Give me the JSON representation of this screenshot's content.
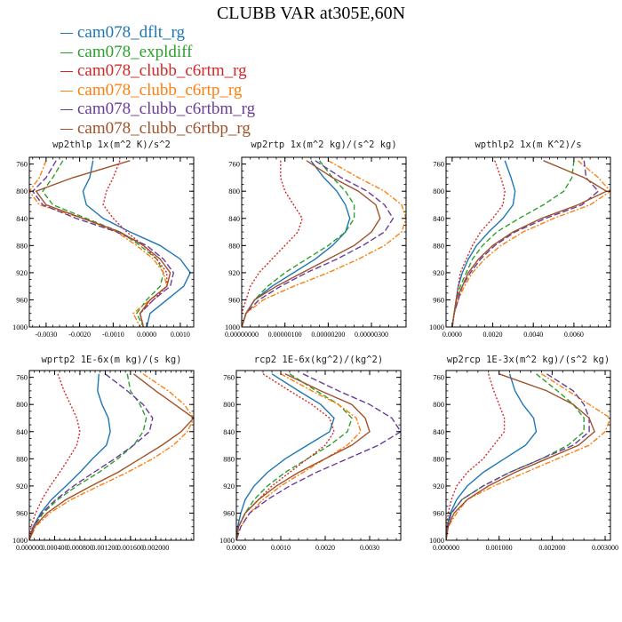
{
  "title": "CLUBB VAR at305E,60N",
  "legend": [
    {
      "name": "cam078_dflt_rg",
      "color": "#1f77b4",
      "dash": ""
    },
    {
      "name": "cam078_expldiff",
      "color": "#2ca02c",
      "dash": "6,3"
    },
    {
      "name": "cam078_clubb_c6rtm_rg",
      "color": "#d62728",
      "dash": "2,2"
    },
    {
      "name": "cam078_clubb_c6rtp_rg",
      "color": "#ff7f0e",
      "dash": "6,2,2,2"
    },
    {
      "name": "cam078_clubb_c6rtbm_rg",
      "color": "#6a3d9a",
      "dash": "7,3"
    },
    {
      "name": "cam078_clubb_c6rtbp_rg",
      "color": "#a0522d",
      "dash": ""
    }
  ],
  "chart_data": [
    {
      "type": "line",
      "title": "wp2thlp   1x(m^2 K)/s^2",
      "xlim": [
        -0.0035,
        0.0014
      ],
      "ylim": [
        1000,
        750
      ],
      "xticks": [
        -0.003,
        -0.002,
        -0.001,
        0.0,
        0.001
      ],
      "xtick_labels": [
        "-0.0030",
        "-0.0020",
        "-0.0010",
        "0.0000",
        "0.0010"
      ],
      "yticks": [
        760,
        800,
        840,
        880,
        920,
        960,
        1000
      ],
      "y": [
        755,
        780,
        800,
        820,
        840,
        860,
        880,
        900,
        920,
        940,
        960,
        980,
        1000
      ],
      "series": [
        {
          "name": "cam078_dflt_rg",
          "values": [
            -0.0016,
            -0.0017,
            -0.0019,
            -0.0018,
            -0.0013,
            -0.0005,
            0.0004,
            0.001,
            0.0013,
            0.0011,
            0.0006,
            0.0001,
            0.0
          ]
        },
        {
          "name": "cam078_expldiff",
          "values": [
            -0.0025,
            -0.0028,
            -0.0031,
            -0.0028,
            -0.0018,
            -0.0008,
            -0.0002,
            0.0003,
            0.0005,
            0.0004,
            0.0,
            -0.0003,
            -0.0001
          ]
        },
        {
          "name": "cam078_clubb_c6rtm_rg",
          "values": [
            -0.0008,
            -0.001,
            -0.0012,
            -0.0013,
            -0.001,
            -0.0006,
            -0.0001,
            0.0003,
            0.0006,
            0.0006,
            0.0002,
            -0.0002,
            -0.0001
          ]
        },
        {
          "name": "cam078_clubb_c6rtp_rg",
          "values": [
            -0.003,
            -0.0032,
            -0.0035,
            -0.0032,
            -0.0019,
            -0.0009,
            -0.0003,
            0.0002,
            0.0005,
            0.0006,
            0.0001,
            -0.0004,
            -0.0002
          ]
        },
        {
          "name": "cam078_clubb_c6rtbm_rg",
          "values": [
            -0.0027,
            -0.003,
            -0.0034,
            -0.0031,
            -0.0021,
            -0.0009,
            0.0,
            0.0005,
            0.0008,
            0.0007,
            0.0002,
            -0.0002,
            -0.0001
          ]
        },
        {
          "name": "cam078_clubb_c6rtbp_rg",
          "values": [
            -0.0005,
            -0.0022,
            -0.0033,
            -0.003,
            -0.0019,
            -0.0008,
            -0.0001,
            0.0004,
            0.0007,
            0.0006,
            0.0001,
            -0.0002,
            -0.0001
          ]
        }
      ]
    },
    {
      "type": "line",
      "title": "wp2rtp   1x(m^2 kg)/(s^2 kg)",
      "xlim": [
        0.0,
        3.8e-06
      ],
      "ylim": [
        1000,
        750
      ],
      "xticks": [
        0.0,
        1e-06,
        2e-06,
        3e-06
      ],
      "xtick_labels": [
        "0.00000000",
        "0.00000100",
        "0.00000200",
        "0.00000300"
      ],
      "yticks": [
        760,
        800,
        840,
        880,
        920,
        960,
        1000
      ],
      "y": [
        755,
        780,
        800,
        820,
        840,
        860,
        880,
        900,
        920,
        940,
        960,
        980,
        1000
      ],
      "series": [
        {
          "name": "cam078_dflt_rg",
          "values": [
            1.6e-06,
            1.9e-06,
            2.2e-06,
            2.4e-06,
            2.5e-06,
            2.4e-06,
            2.1e-06,
            1.7e-06,
            1.2e-06,
            7e-07,
            3e-07,
            1e-07,
            0.0
          ]
        },
        {
          "name": "cam078_expldiff",
          "values": [
            1.8e-06,
            2.1e-06,
            2.4e-06,
            2.6e-06,
            2.6e-06,
            2.4e-06,
            2e-06,
            1.5e-06,
            1e-06,
            6e-07,
            3e-07,
            1e-07,
            0.0
          ]
        },
        {
          "name": "cam078_clubb_c6rtm_rg",
          "values": [
            9e-07,
            9e-07,
            1e-06,
            1.2e-06,
            1.4e-06,
            1.3e-06,
            1e-06,
            7e-07,
            4e-07,
            2e-07,
            1e-07,
            0.0,
            0.0
          ]
        },
        {
          "name": "cam078_clubb_c6rtp_rg",
          "values": [
            2e-06,
            2.7e-06,
            3.3e-06,
            3.7e-06,
            3.8e-06,
            3.7e-06,
            3.3e-06,
            2.7e-06,
            2e-06,
            1.2e-06,
            5e-07,
            1e-07,
            0.0
          ]
        },
        {
          "name": "cam078_clubb_c6rtbm_rg",
          "values": [
            1.7e-06,
            2.3e-06,
            2.9e-06,
            3.3e-06,
            3.5e-06,
            3.3e-06,
            2.8e-06,
            2.2e-06,
            1.5e-06,
            9e-07,
            4e-07,
            1e-07,
            0.0
          ]
        },
        {
          "name": "cam078_clubb_c6rtbp_rg",
          "values": [
            1.5e-06,
            2.1e-06,
            2.7e-06,
            3.1e-06,
            3.2e-06,
            3e-06,
            2.6e-06,
            2e-06,
            1.4e-06,
            8e-07,
            3e-07,
            1e-07,
            0.0
          ]
        }
      ]
    },
    {
      "type": "line",
      "title": "wpthlp2   1x(m K^2)/s",
      "xlim": [
        -0.0003,
        0.0078
      ],
      "ylim": [
        1000,
        750
      ],
      "xticks": [
        0.0,
        0.002,
        0.004,
        0.006
      ],
      "xtick_labels": [
        "0.0000",
        "0.0020",
        "0.0040",
        "0.0060"
      ],
      "yticks": [
        760,
        800,
        840,
        880,
        920,
        960,
        1000
      ],
      "y": [
        755,
        780,
        800,
        820,
        840,
        860,
        880,
        900,
        920,
        940,
        960,
        980,
        1000
      ],
      "series": [
        {
          "name": "cam078_dflt_rg",
          "values": [
            0.0026,
            0.0029,
            0.0031,
            0.003,
            0.0025,
            0.0018,
            0.0012,
            0.0008,
            0.0005,
            0.0003,
            0.0002,
            0.0001,
            0.0
          ]
        },
        {
          "name": "cam078_expldiff",
          "values": [
            0.006,
            0.0059,
            0.0055,
            0.0045,
            0.0033,
            0.0022,
            0.0015,
            0.001,
            0.0007,
            0.0004,
            0.0002,
            0.0001,
            0.0
          ]
        },
        {
          "name": "cam078_clubb_c6rtm_rg",
          "values": [
            0.0021,
            0.0024,
            0.0026,
            0.0025,
            0.002,
            0.0014,
            0.001,
            0.0007,
            0.0004,
            0.0003,
            0.0002,
            0.0001,
            0.0
          ]
        },
        {
          "name": "cam078_clubb_c6rtp_rg",
          "values": [
            0.0062,
            0.0072,
            0.0078,
            0.0068,
            0.005,
            0.0035,
            0.0024,
            0.0016,
            0.001,
            0.0006,
            0.0003,
            0.0001,
            0.0
          ]
        },
        {
          "name": "cam078_clubb_c6rtbm_rg",
          "values": [
            0.0065,
            0.0066,
            0.0072,
            0.0064,
            0.0046,
            0.0031,
            0.0021,
            0.0014,
            0.0009,
            0.0005,
            0.0003,
            0.0001,
            0.0
          ]
        },
        {
          "name": "cam078_clubb_c6rtbp_rg",
          "values": [
            0.0045,
            0.0065,
            0.0076,
            0.0062,
            0.0044,
            0.003,
            0.002,
            0.0013,
            0.0008,
            0.0005,
            0.0002,
            0.0001,
            0.0
          ]
        }
      ]
    },
    {
      "type": "line",
      "title": "wprtp2   1E-6x(m kg)/(s kg)",
      "xlim": [
        0.0,
        0.0026
      ],
      "ylim": [
        1000,
        750
      ],
      "xticks": [
        0.0,
        0.0004,
        0.0008,
        0.0012,
        0.0016,
        0.002
      ],
      "xtick_labels": [
        "0.000000",
        "0.000400",
        "0.000800",
        "0.001200",
        "0.001600",
        "0.002000"
      ],
      "yticks": [
        760,
        800,
        840,
        880,
        920,
        960,
        1000
      ],
      "y": [
        755,
        780,
        800,
        820,
        840,
        860,
        880,
        900,
        920,
        940,
        960,
        980,
        1000
      ],
      "series": [
        {
          "name": "cam078_dflt_rg",
          "values": [
            0.0011,
            0.00108,
            0.00115,
            0.00125,
            0.00128,
            0.00122,
            0.001,
            0.0008,
            0.00058,
            0.00035,
            0.00018,
            6e-05,
            0.0
          ]
        },
        {
          "name": "cam078_expldiff",
          "values": [
            0.00155,
            0.0016,
            0.00175,
            0.00185,
            0.0018,
            0.00165,
            0.0014,
            0.0011,
            0.00075,
            0.00045,
            0.00022,
            7e-05,
            0.0
          ]
        },
        {
          "name": "cam078_clubb_c6rtm_rg",
          "values": [
            0.00045,
            0.00055,
            0.00065,
            0.00075,
            0.0008,
            0.00075,
            0.00062,
            0.00048,
            0.00033,
            0.0002,
            0.0001,
            3e-05,
            0.0
          ]
        },
        {
          "name": "cam078_clubb_c6rtp_rg",
          "values": [
            0.0018,
            0.0022,
            0.00245,
            0.0026,
            0.0025,
            0.00228,
            0.00195,
            0.00155,
            0.0011,
            0.00066,
            0.00032,
            0.0001,
            0.0
          ]
        },
        {
          "name": "cam078_clubb_c6rtbm_rg",
          "values": [
            0.0012,
            0.00155,
            0.0018,
            0.00195,
            0.0019,
            0.00165,
            0.00135,
            0.00102,
            0.0007,
            0.00042,
            0.0002,
            6e-05,
            0.0
          ]
        },
        {
          "name": "cam078_clubb_c6rtbp_rg",
          "values": [
            0.00165,
            0.002,
            0.0023,
            0.0026,
            0.0024,
            0.0021,
            0.00175,
            0.0014,
            0.00098,
            0.00058,
            0.00028,
            8e-05,
            0.0
          ]
        }
      ]
    },
    {
      "type": "line",
      "title": "rcp2   1E-6x(kg^2)/(kg^2)",
      "xlim": [
        0.0,
        0.0037
      ],
      "ylim": [
        1000,
        750
      ],
      "xticks": [
        0.0,
        0.001,
        0.002,
        0.003
      ],
      "xtick_labels": [
        "0.0000",
        "0.0010",
        "0.0020",
        "0.0030"
      ],
      "yticks": [
        760,
        800,
        840,
        880,
        920,
        960,
        1000
      ],
      "y": [
        755,
        780,
        800,
        820,
        840,
        860,
        880,
        900,
        920,
        940,
        960,
        980,
        1000
      ],
      "series": [
        {
          "name": "cam078_dflt_rg",
          "values": [
            0.0008,
            0.0014,
            0.0019,
            0.0022,
            0.0021,
            0.0016,
            0.0011,
            0.0007,
            0.0004,
            0.0002,
            0.0001,
            3e-05,
            0.0
          ]
        },
        {
          "name": "cam078_expldiff",
          "values": [
            0.0012,
            0.0018,
            0.0023,
            0.0026,
            0.0025,
            0.0021,
            0.0016,
            0.0011,
            0.0007,
            0.0004,
            0.0002,
            5e-05,
            0.0
          ]
        },
        {
          "name": "cam078_clubb_c6rtm_rg",
          "values": [
            0.0006,
            0.0012,
            0.0017,
            0.0021,
            0.0022,
            0.002,
            0.0016,
            0.0012,
            0.0008,
            0.0005,
            0.0002,
            5e-05,
            0.0
          ]
        },
        {
          "name": "cam078_clubb_c6rtp_rg",
          "values": [
            0.001,
            0.0017,
            0.0023,
            0.0027,
            0.0028,
            0.0025,
            0.002,
            0.0015,
            0.001,
            0.0006,
            0.0003,
            0.0001,
            0.0
          ]
        },
        {
          "name": "cam078_clubb_c6rtbm_rg",
          "values": [
            0.0015,
            0.0023,
            0.003,
            0.0035,
            0.0037,
            0.0032,
            0.0025,
            0.0018,
            0.0012,
            0.0007,
            0.0003,
            0.0001,
            0.0
          ]
        },
        {
          "name": "cam078_clubb_c6rtbp_rg",
          "values": [
            0.0011,
            0.0019,
            0.0026,
            0.0029,
            0.003,
            0.0026,
            0.002,
            0.0014,
            0.0009,
            0.0005,
            0.0002,
            5e-05,
            0.0
          ]
        }
      ]
    },
    {
      "type": "line",
      "title": "wp2rcp   1E-3x(m^2 kg)/(s^2 kg)",
      "xlim": [
        0.0,
        0.0031
      ],
      "ylim": [
        1000,
        750
      ],
      "xticks": [
        0.0,
        0.001,
        0.002,
        0.003
      ],
      "xtick_labels": [
        "0.000000",
        "0.001000",
        "0.002000",
        "0.003000"
      ],
      "yticks": [
        760,
        800,
        840,
        880,
        920,
        960,
        1000
      ],
      "y": [
        755,
        780,
        800,
        820,
        840,
        860,
        880,
        900,
        920,
        940,
        960,
        980,
        1000
      ],
      "series": [
        {
          "name": "cam078_dflt_rg",
          "values": [
            0.0012,
            0.0013,
            0.00145,
            0.00165,
            0.0017,
            0.0015,
            0.0011,
            0.0007,
            0.0004,
            0.0002,
            8e-05,
            2e-05,
            0.0
          ]
        },
        {
          "name": "cam078_expldiff",
          "values": [
            0.0017,
            0.0021,
            0.0024,
            0.0026,
            0.0026,
            0.0023,
            0.0018,
            0.0012,
            0.0007,
            0.0003,
            0.0001,
            3e-05,
            0.0
          ]
        },
        {
          "name": "cam078_clubb_c6rtm_rg",
          "values": [
            0.0008,
            0.0009,
            0.001,
            0.0011,
            0.0011,
            0.0009,
            0.0007,
            0.0004,
            0.0002,
            0.0001,
            4e-05,
            1e-05,
            0.0
          ]
        },
        {
          "name": "cam078_clubb_c6rtp_rg",
          "values": [
            0.0018,
            0.0023,
            0.0027,
            0.0031,
            0.003,
            0.0027,
            0.0021,
            0.0015,
            0.0009,
            0.0004,
            0.0002,
            4e-05,
            0.0
          ]
        },
        {
          "name": "cam078_clubb_c6rtbm_rg",
          "values": [
            0.0019,
            0.0024,
            0.0026,
            0.0027,
            0.0027,
            0.0024,
            0.0018,
            0.0012,
            0.0007,
            0.0003,
            0.0001,
            3e-05,
            0.0
          ]
        },
        {
          "name": "cam078_clubb_c6rtbp_rg",
          "values": [
            0.001,
            0.0019,
            0.0024,
            0.0027,
            0.0028,
            0.0025,
            0.0019,
            0.0013,
            0.0008,
            0.0004,
            0.00015,
            4e-05,
            0.0
          ]
        }
      ]
    }
  ]
}
